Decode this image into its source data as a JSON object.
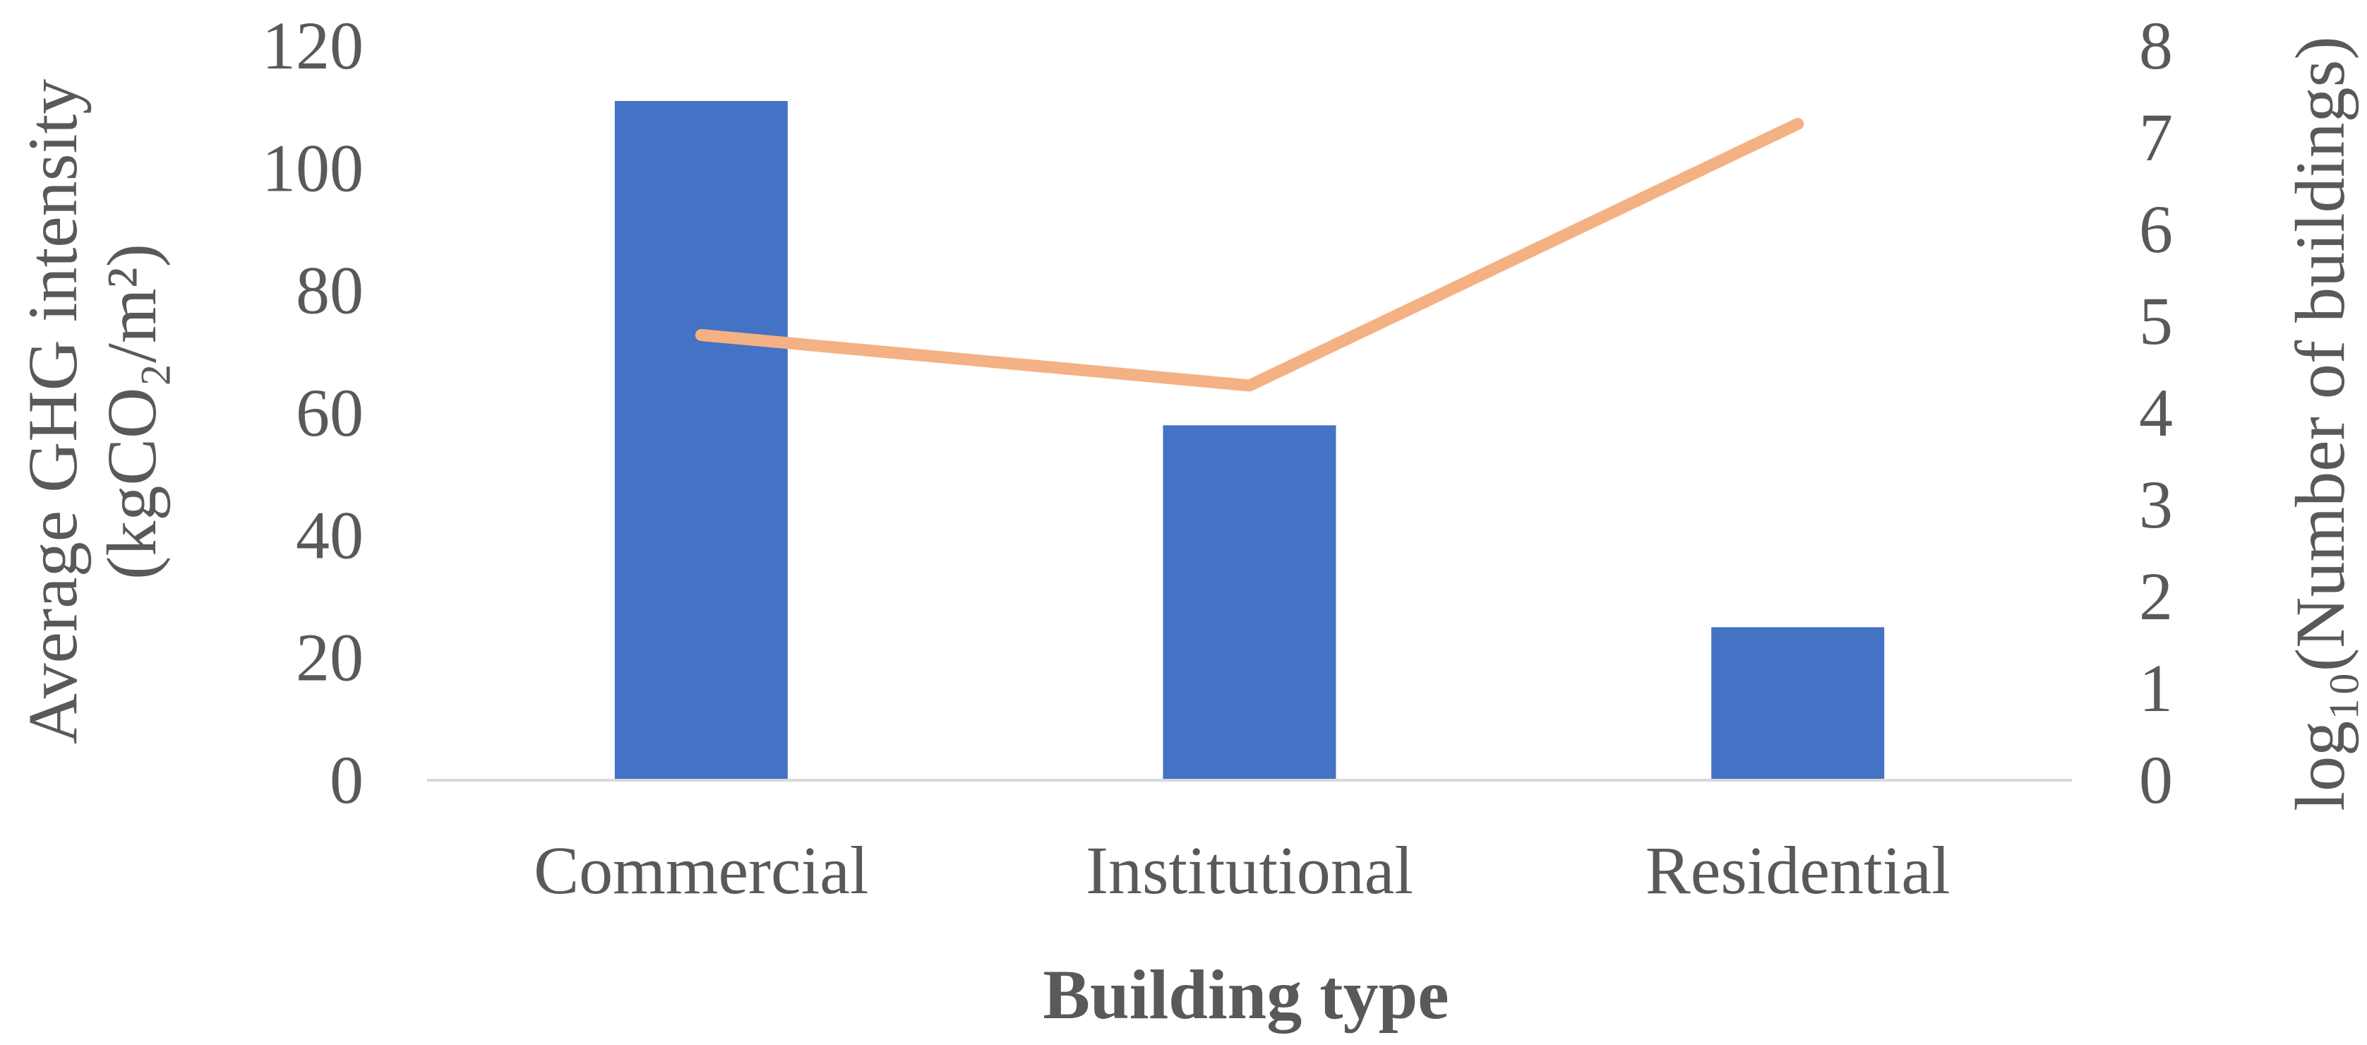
{
  "chart_data": {
    "type": "bar",
    "title": "",
    "categories": [
      "Commercial",
      "Institutional",
      "Residential"
    ],
    "series": [
      {
        "type": "bar",
        "axis": "left",
        "values": [
          111,
          58,
          25
        ],
        "color": "#4472C4"
      },
      {
        "type": "line",
        "axis": "right",
        "values": [
          4.85,
          4.3,
          7.15
        ],
        "color": "#F4B183"
      }
    ],
    "xlabel": "Building type",
    "ylabel_left_line1": "Average GHG intensity",
    "ylabel_left_line2": "(kgCO₂/m²)",
    "ylabel_right": "log₁₀(Number of buildings)",
    "ylim_left": [
      0,
      120
    ],
    "ylim_right": [
      0,
      8
    ],
    "yticks_left": [
      "0",
      "20",
      "40",
      "60",
      "80",
      "100",
      "120"
    ],
    "yticks_right": [
      "0",
      "1",
      "2",
      "3",
      "4",
      "5",
      "6",
      "7",
      "8"
    ],
    "grid": false,
    "legend": "none"
  }
}
